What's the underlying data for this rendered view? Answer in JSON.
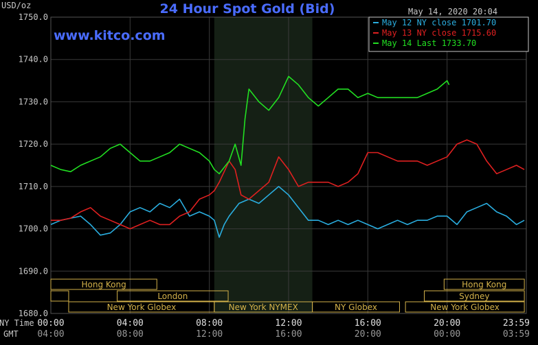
{
  "chart_data": {
    "type": "line",
    "title": "24 Hour Spot Gold (Bid)",
    "ylabel": "USD/oz",
    "timestamp": "May 14, 2020 20:04",
    "watermark": "www.kitco.com",
    "ylim": [
      1680,
      1750
    ],
    "xlim": [
      0,
      24
    ],
    "y_ticks": [
      "1750.0",
      "1740.0",
      "1730.0",
      "1720.0",
      "1710.0",
      "1700.0",
      "1690.0",
      "1680.0"
    ],
    "x_ticks_ny": [
      "00:00",
      "04:00",
      "08:00",
      "12:00",
      "16:00",
      "20:00",
      "23:59"
    ],
    "x_ticks_gmt": [
      "04:00",
      "08:00",
      "12:00",
      "16:00",
      "20:00",
      "00:00",
      "03:59"
    ],
    "x_axis_labels": {
      "ny": "NY Time",
      "gmt": "GMT"
    },
    "highlight_range": [
      8.25,
      13.2
    ],
    "grid": true,
    "legend_position": "top-right",
    "colors": {
      "background": "#000000",
      "grid": "#3a3a3a",
      "title": "#4a6cff",
      "watermark": "#4a6cff",
      "text": "#c8c8c8",
      "session": "#d4b24a",
      "highlight": "#152015"
    },
    "series": [
      {
        "name": "May 12 NY close 1701.70",
        "color": "#2aaee0",
        "x": [
          0,
          0.5,
          1,
          1.5,
          2,
          2.5,
          3,
          3.5,
          4,
          4.5,
          5,
          5.5,
          6,
          6.5,
          7,
          7.5,
          8,
          8.25,
          8.5,
          8.75,
          9,
          9.5,
          10,
          10.5,
          11,
          11.5,
          12,
          12.5,
          13,
          13.5,
          14,
          14.5,
          15,
          15.5,
          16,
          16.5,
          17,
          17.5,
          18,
          18.5,
          19,
          19.5,
          20,
          20.5,
          21,
          21.5,
          22,
          22.5,
          23,
          23.5,
          23.9
        ],
        "y": [
          1701,
          1702,
          1702.5,
          1703,
          1701,
          1698.5,
          1699,
          1701,
          1704,
          1705,
          1704,
          1706,
          1705,
          1707,
          1703,
          1704,
          1703,
          1702,
          1698,
          1701,
          1703,
          1706,
          1707,
          1706,
          1708,
          1710,
          1708,
          1705,
          1702,
          1702,
          1701,
          1702,
          1701,
          1702,
          1701,
          1700,
          1701,
          1702,
          1701,
          1702,
          1702,
          1703,
          1703,
          1701,
          1704,
          1705,
          1706,
          1704,
          1703,
          1701,
          1702
        ]
      },
      {
        "name": "May 13 NY close 1715.60",
        "color": "#e02020",
        "x": [
          0,
          0.5,
          1,
          1.5,
          2,
          2.5,
          3,
          3.5,
          4,
          4.5,
          5,
          5.5,
          6,
          6.5,
          7,
          7.5,
          8,
          8.25,
          8.5,
          9,
          9.3,
          9.6,
          10,
          10.5,
          11,
          11.5,
          12,
          12.5,
          13,
          13.5,
          14,
          14.5,
          15,
          15.5,
          16,
          16.5,
          17,
          17.5,
          18,
          18.5,
          19,
          19.5,
          20,
          20.5,
          21,
          21.5,
          22,
          22.5,
          23,
          23.5,
          23.9
        ],
        "y": [
          1702,
          1702,
          1702.5,
          1704,
          1705,
          1703,
          1702,
          1701,
          1700,
          1701,
          1702,
          1701,
          1701,
          1703,
          1704,
          1707,
          1708,
          1709,
          1711,
          1716,
          1714,
          1708,
          1707,
          1709,
          1711,
          1717,
          1714,
          1710,
          1711,
          1711,
          1711,
          1710,
          1711,
          1713,
          1718,
          1718,
          1717,
          1716,
          1716,
          1716,
          1715,
          1716,
          1717,
          1720,
          1721,
          1720,
          1716,
          1713,
          1714,
          1715,
          1714
        ]
      },
      {
        "name": "May 14 Last 1733.70",
        "color": "#22e022",
        "x": [
          0,
          0.5,
          1,
          1.5,
          2,
          2.5,
          3,
          3.5,
          4,
          4.5,
          5,
          5.5,
          6,
          6.5,
          7,
          7.5,
          8,
          8.25,
          8.5,
          9,
          9.3,
          9.6,
          9.8,
          10,
          10.5,
          11,
          11.5,
          12,
          12.5,
          13,
          13.5,
          14,
          14.5,
          15,
          15.5,
          16,
          16.5,
          17,
          17.5,
          18,
          18.5,
          19,
          19.5,
          20,
          20.1
        ],
        "y": [
          1715,
          1714,
          1713.5,
          1715,
          1716,
          1717,
          1719,
          1720,
          1718,
          1716,
          1716,
          1717,
          1718,
          1720,
          1719,
          1718,
          1716,
          1714,
          1713,
          1716,
          1720,
          1715,
          1726,
          1733,
          1730,
          1728,
          1731,
          1736,
          1734,
          1731,
          1729,
          1731,
          1733,
          1733,
          1731,
          1732,
          1731,
          1731,
          1731,
          1731,
          1731,
          1732,
          1733,
          1735,
          1734
        ]
      }
    ],
    "sessions": [
      {
        "label": "Hong Kong",
        "start": 0,
        "end": 5.35,
        "row": 0
      },
      {
        "label": "",
        "start": 0,
        "end": 0.9,
        "row": 1
      },
      {
        "label": "London",
        "start": 3.35,
        "end": 8.95,
        "row": 1
      },
      {
        "label": "New York Globex",
        "start": 0.9,
        "end": 8.25,
        "row": 2
      },
      {
        "label": "New York NYMEX",
        "start": 8.25,
        "end": 13.2,
        "row": 2
      },
      {
        "label": "NY Globex",
        "start": 13.2,
        "end": 17.6,
        "row": 2
      },
      {
        "label": "Hong Kong",
        "start": 19.85,
        "end": 23.9,
        "row": 0
      },
      {
        "label": "Sydney",
        "start": 18.85,
        "end": 23.9,
        "row": 1
      },
      {
        "label": "New York Globex",
        "start": 17.9,
        "end": 23.9,
        "row": 2
      }
    ]
  }
}
